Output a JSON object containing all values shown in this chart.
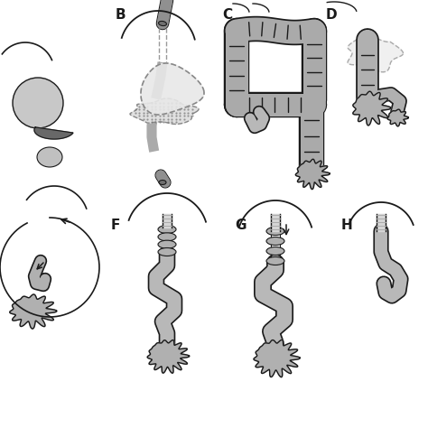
{
  "bg_color": "#ffffff",
  "line_color": "#1a1a1a",
  "gray_colon": "#aaaaaa",
  "gray_si": "#b8b8b8",
  "gray_light": "#e0e0e0",
  "gray_dark": "#787878",
  "gray_medium": "#c0c0c0",
  "labels": [
    "B",
    "C",
    "D",
    "F",
    "G",
    "H"
  ],
  "label_fontsize": 11,
  "label_fontweight": "bold",
  "figsize": [
    4.74,
    4.74
  ],
  "dpi": 100
}
